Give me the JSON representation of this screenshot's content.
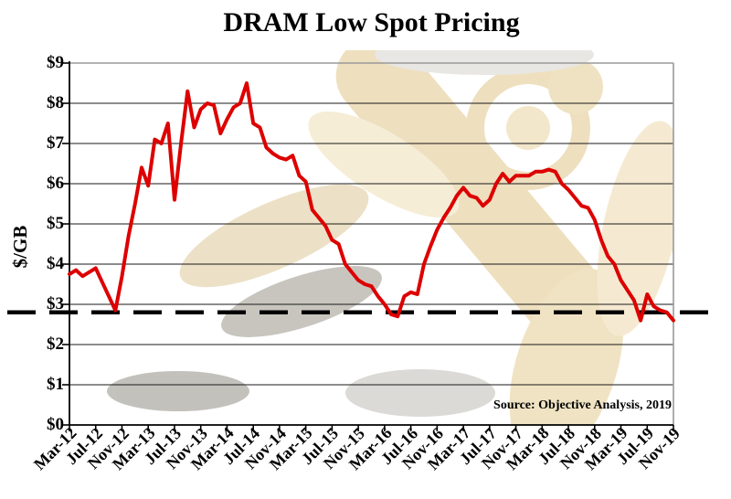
{
  "page": {
    "title": "DRAM Low Spot Pricing"
  },
  "source_note": "Source: Objective Analysis, 2019",
  "colors": {
    "line": "#dd0000",
    "reference_line": "#000000",
    "grid": "#1a1a1a",
    "frame_muted": "#9a9a9a",
    "background_tint": "#c9992e"
  },
  "chart_data": {
    "type": "line",
    "title": "DRAM Low Spot Pricing",
    "xlabel": "",
    "ylabel": "$/GB",
    "ylim": [
      0,
      9
    ],
    "grid": "horizontal",
    "legend": "none",
    "y_tick_labels": [
      "$0",
      "$1",
      "$2",
      "$3",
      "$4",
      "$5",
      "$6",
      "$7",
      "$8",
      "$9"
    ],
    "x_tick_labels": [
      "Mar-12",
      "Jul-12",
      "Nov-12",
      "Mar-13",
      "Jul-13",
      "Nov-13",
      "Mar-14",
      "Jul-14",
      "Nov-14",
      "Mar-15",
      "Jul-15",
      "Nov-15",
      "Mar-16",
      "Jul-16",
      "Nov-16",
      "Mar-17",
      "Jul-17",
      "Nov-17",
      "Mar-18",
      "Jul-18",
      "Nov-18",
      "Mar-19",
      "Jul-19",
      "Nov-19"
    ],
    "x_tick_every_n_months": 4,
    "reference_line": {
      "value": 2.8,
      "style": "dashed",
      "color": "#000000"
    },
    "months": [
      "Mar-12",
      "Apr-12",
      "May-12",
      "Jun-12",
      "Jul-12",
      "Aug-12",
      "Sep-12",
      "Oct-12",
      "Nov-12",
      "Dec-12",
      "Jan-13",
      "Feb-13",
      "Mar-13",
      "Apr-13",
      "May-13",
      "Jun-13",
      "Jul-13",
      "Aug-13",
      "Sep-13",
      "Oct-13",
      "Nov-13",
      "Dec-13",
      "Jan-14",
      "Feb-14",
      "Mar-14",
      "Apr-14",
      "May-14",
      "Jun-14",
      "Jul-14",
      "Aug-14",
      "Sep-14",
      "Oct-14",
      "Nov-14",
      "Dec-14",
      "Jan-15",
      "Feb-15",
      "Mar-15",
      "Apr-15",
      "May-15",
      "Jun-15",
      "Jul-15",
      "Aug-15",
      "Sep-15",
      "Oct-15",
      "Nov-15",
      "Dec-15",
      "Jan-16",
      "Feb-16",
      "Mar-16",
      "Apr-16",
      "May-16",
      "Jun-16",
      "Jul-16",
      "Aug-16",
      "Sep-16",
      "Oct-16",
      "Nov-16",
      "Dec-16",
      "Jan-17",
      "Feb-17",
      "Mar-17",
      "Apr-17",
      "May-17",
      "Jun-17",
      "Jul-17",
      "Aug-17",
      "Sep-17",
      "Oct-17",
      "Nov-17",
      "Dec-17",
      "Jan-18",
      "Feb-18",
      "Mar-18",
      "Apr-18",
      "May-18",
      "Jun-18",
      "Jul-18",
      "Aug-18",
      "Sep-18",
      "Oct-18",
      "Nov-18",
      "Dec-18",
      "Jan-19",
      "Feb-19",
      "Mar-19",
      "Apr-19",
      "May-19",
      "Jun-19",
      "Jul-19",
      "Aug-19",
      "Sep-19",
      "Oct-19",
      "Nov-19"
    ],
    "series": [
      {
        "name": "DRAM low spot price ($/GB)",
        "color": "#dd0000",
        "values": [
          3.75,
          3.85,
          3.7,
          3.8,
          3.9,
          3.55,
          3.2,
          2.85,
          3.7,
          4.7,
          5.5,
          6.4,
          5.95,
          7.1,
          7.0,
          7.5,
          5.6,
          7.0,
          8.3,
          7.4,
          7.85,
          8.0,
          7.95,
          7.25,
          7.6,
          7.9,
          8.0,
          8.5,
          7.5,
          7.4,
          6.9,
          6.75,
          6.65,
          6.6,
          6.7,
          6.2,
          6.05,
          5.35,
          5.15,
          4.95,
          4.6,
          4.5,
          4.0,
          3.8,
          3.6,
          3.5,
          3.45,
          3.2,
          3.0,
          2.75,
          2.7,
          3.2,
          3.3,
          3.25,
          4.0,
          4.45,
          4.85,
          5.15,
          5.4,
          5.7,
          5.9,
          5.7,
          5.65,
          5.45,
          5.6,
          6.0,
          6.25,
          6.05,
          6.2,
          6.2,
          6.2,
          6.3,
          6.3,
          6.35,
          6.3,
          6.0,
          5.85,
          5.65,
          5.45,
          5.4,
          5.1,
          4.6,
          4.2,
          4.0,
          3.6,
          3.35,
          3.1,
          2.6,
          3.25,
          2.95,
          2.85,
          2.8,
          2.6
        ]
      }
    ]
  }
}
